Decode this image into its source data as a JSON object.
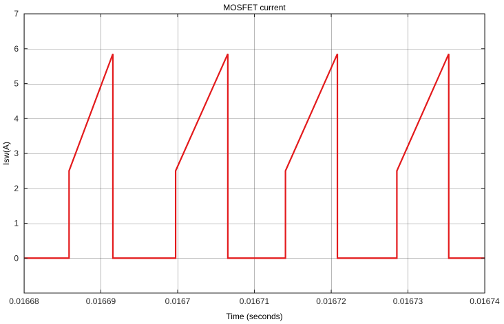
{
  "chart_data": {
    "type": "line",
    "title": "MOSFET current",
    "xlabel": "Time (seconds)",
    "ylabel": "Isw(A)",
    "xlim": [
      0.01668,
      0.01674
    ],
    "ylim": [
      -1,
      7
    ],
    "xticks": [
      0.01668,
      0.01669,
      0.0167,
      0.01671,
      0.01672,
      0.01673,
      0.01674
    ],
    "xtick_labels": [
      "0.01668",
      "0.01669",
      "0.0167",
      "0.01671",
      "0.01672",
      "0.01673",
      "0.01674"
    ],
    "yticks": [
      0,
      1,
      2,
      3,
      4,
      5,
      6,
      7
    ],
    "ytick_labels": [
      "0",
      "1",
      "2",
      "3",
      "4",
      "5",
      "6",
      "7"
    ],
    "grid": true,
    "legend": false,
    "series": [
      {
        "color": "#e31a1c",
        "x": [
          0.01668,
          0.016685857,
          0.016685857,
          0.016691563,
          0.016691563,
          0.016699736,
          0.016699736,
          0.016706536,
          0.016706536,
          0.016714045,
          0.016714045,
          0.016720811,
          0.016720811,
          0.016728557,
          0.016728557,
          0.016735314,
          0.016735314,
          0.01674
        ],
        "y": [
          0,
          0,
          2.5,
          5.85,
          0,
          0,
          2.5,
          5.85,
          0,
          0,
          2.5,
          5.85,
          0,
          0,
          2.5,
          5.85,
          0,
          0
        ]
      }
    ]
  }
}
